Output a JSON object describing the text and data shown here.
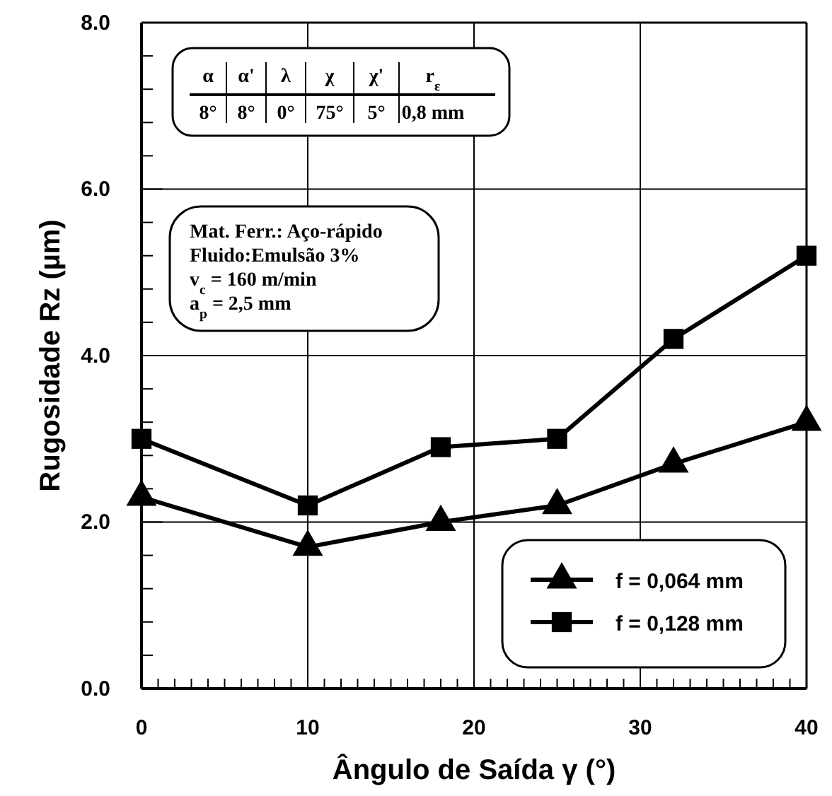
{
  "chart_data": {
    "type": "line",
    "xlabel": "Ângulo de Saída  γ  (°)",
    "ylabel": "Rugosidade  Rz  (µm)",
    "x": [
      0,
      10,
      18,
      25,
      32,
      40
    ],
    "series": [
      {
        "name": "f = 0,064 mm",
        "color": "#000000",
        "marker": "triangle",
        "values": [
          2.3,
          1.7,
          2.0,
          2.2,
          2.7,
          3.2
        ]
      },
      {
        "name": "f = 0,128 mm",
        "color": "#000000",
        "marker": "square",
        "values": [
          3.0,
          2.2,
          2.9,
          3.0,
          4.2,
          5.2
        ]
      }
    ],
    "xlim": [
      0,
      40
    ],
    "ylim": [
      0,
      8
    ],
    "xticks": [
      0,
      {
        "value": 1,
        "label": null
      },
      {
        "value": 2,
        "label": null
      },
      {
        "value": 3,
        "label": null
      },
      {
        "value": 4,
        "label": null
      },
      {
        "value": 5,
        "label": null
      },
      {
        "value": 6,
        "label": null
      },
      {
        "value": 7,
        "label": null
      },
      {
        "value": 8,
        "label": null
      },
      {
        "value": 9,
        "label": null
      },
      10,
      {
        "value": 11,
        "label": null
      },
      {
        "value": 12,
        "label": null
      },
      {
        "value": 13,
        "label": null
      },
      {
        "value": 14,
        "label": null
      },
      {
        "value": 15,
        "label": null
      },
      {
        "value": 16,
        "label": null
      },
      {
        "value": 17,
        "label": null
      },
      {
        "value": 18,
        "label": null
      },
      {
        "value": 19,
        "label": null
      },
      20,
      {
        "value": 21,
        "label": null
      },
      {
        "value": 22,
        "label": null
      },
      {
        "value": 23,
        "label": null
      },
      {
        "value": 24,
        "label": null
      },
      {
        "value": 25,
        "label": null
      },
      {
        "value": 26,
        "label": null
      },
      {
        "value": 27,
        "label": null
      },
      {
        "value": 28,
        "label": null
      },
      {
        "value": 29,
        "label": null
      },
      30,
      {
        "value": 31,
        "label": null
      },
      {
        "value": 32,
        "label": null
      },
      {
        "value": 33,
        "label": null
      },
      {
        "value": 34,
        "label": null
      },
      {
        "value": 35,
        "label": null
      },
      {
        "value": 36,
        "label": null
      },
      {
        "value": 37,
        "label": null
      },
      {
        "value": 38,
        "label": null
      },
      {
        "value": 39,
        "label": null
      },
      40
    ],
    "yticks": [
      {
        "value": 0,
        "label": "0.0"
      },
      {
        "value": 0.4,
        "label": null
      },
      {
        "value": 0.8,
        "label": null
      },
      {
        "value": 1.2,
        "label": null
      },
      {
        "value": 1.6,
        "label": null
      },
      {
        "value": 2,
        "label": "2.0"
      },
      {
        "value": 2.4,
        "label": null
      },
      {
        "value": 2.8,
        "label": null
      },
      {
        "value": 3.2,
        "label": null
      },
      {
        "value": 3.6,
        "label": null
      },
      {
        "value": 4,
        "label": "4.0"
      },
      {
        "value": 4.4,
        "label": null
      },
      {
        "value": 4.8,
        "label": null
      },
      {
        "value": 5.2,
        "label": null
      },
      {
        "value": 5.6,
        "label": null
      },
      {
        "value": 6,
        "label": "6.0"
      },
      {
        "value": 6.4,
        "label": null
      },
      {
        "value": 6.8,
        "label": null
      },
      {
        "value": 7.2,
        "label": null
      },
      {
        "value": 7.6,
        "label": null
      },
      {
        "value": 8,
        "label": "8.0"
      }
    ],
    "grid": true,
    "legend": "bottom right",
    "line_style": "solid",
    "annotations": [
      "α",
      "α'",
      "λ",
      "χ",
      "χ'",
      "r$_{ε}$",
      "8°",
      "8°",
      "0°",
      "75°",
      "5°",
      "0,8 mm",
      "Mat. Ferr.: Aço-rápido",
      "Fluido:Emulsão 3%",
      "v$_{c}$ = 160 m/min",
      "a$_{p}$ = 2,5 mm"
    ]
  }
}
